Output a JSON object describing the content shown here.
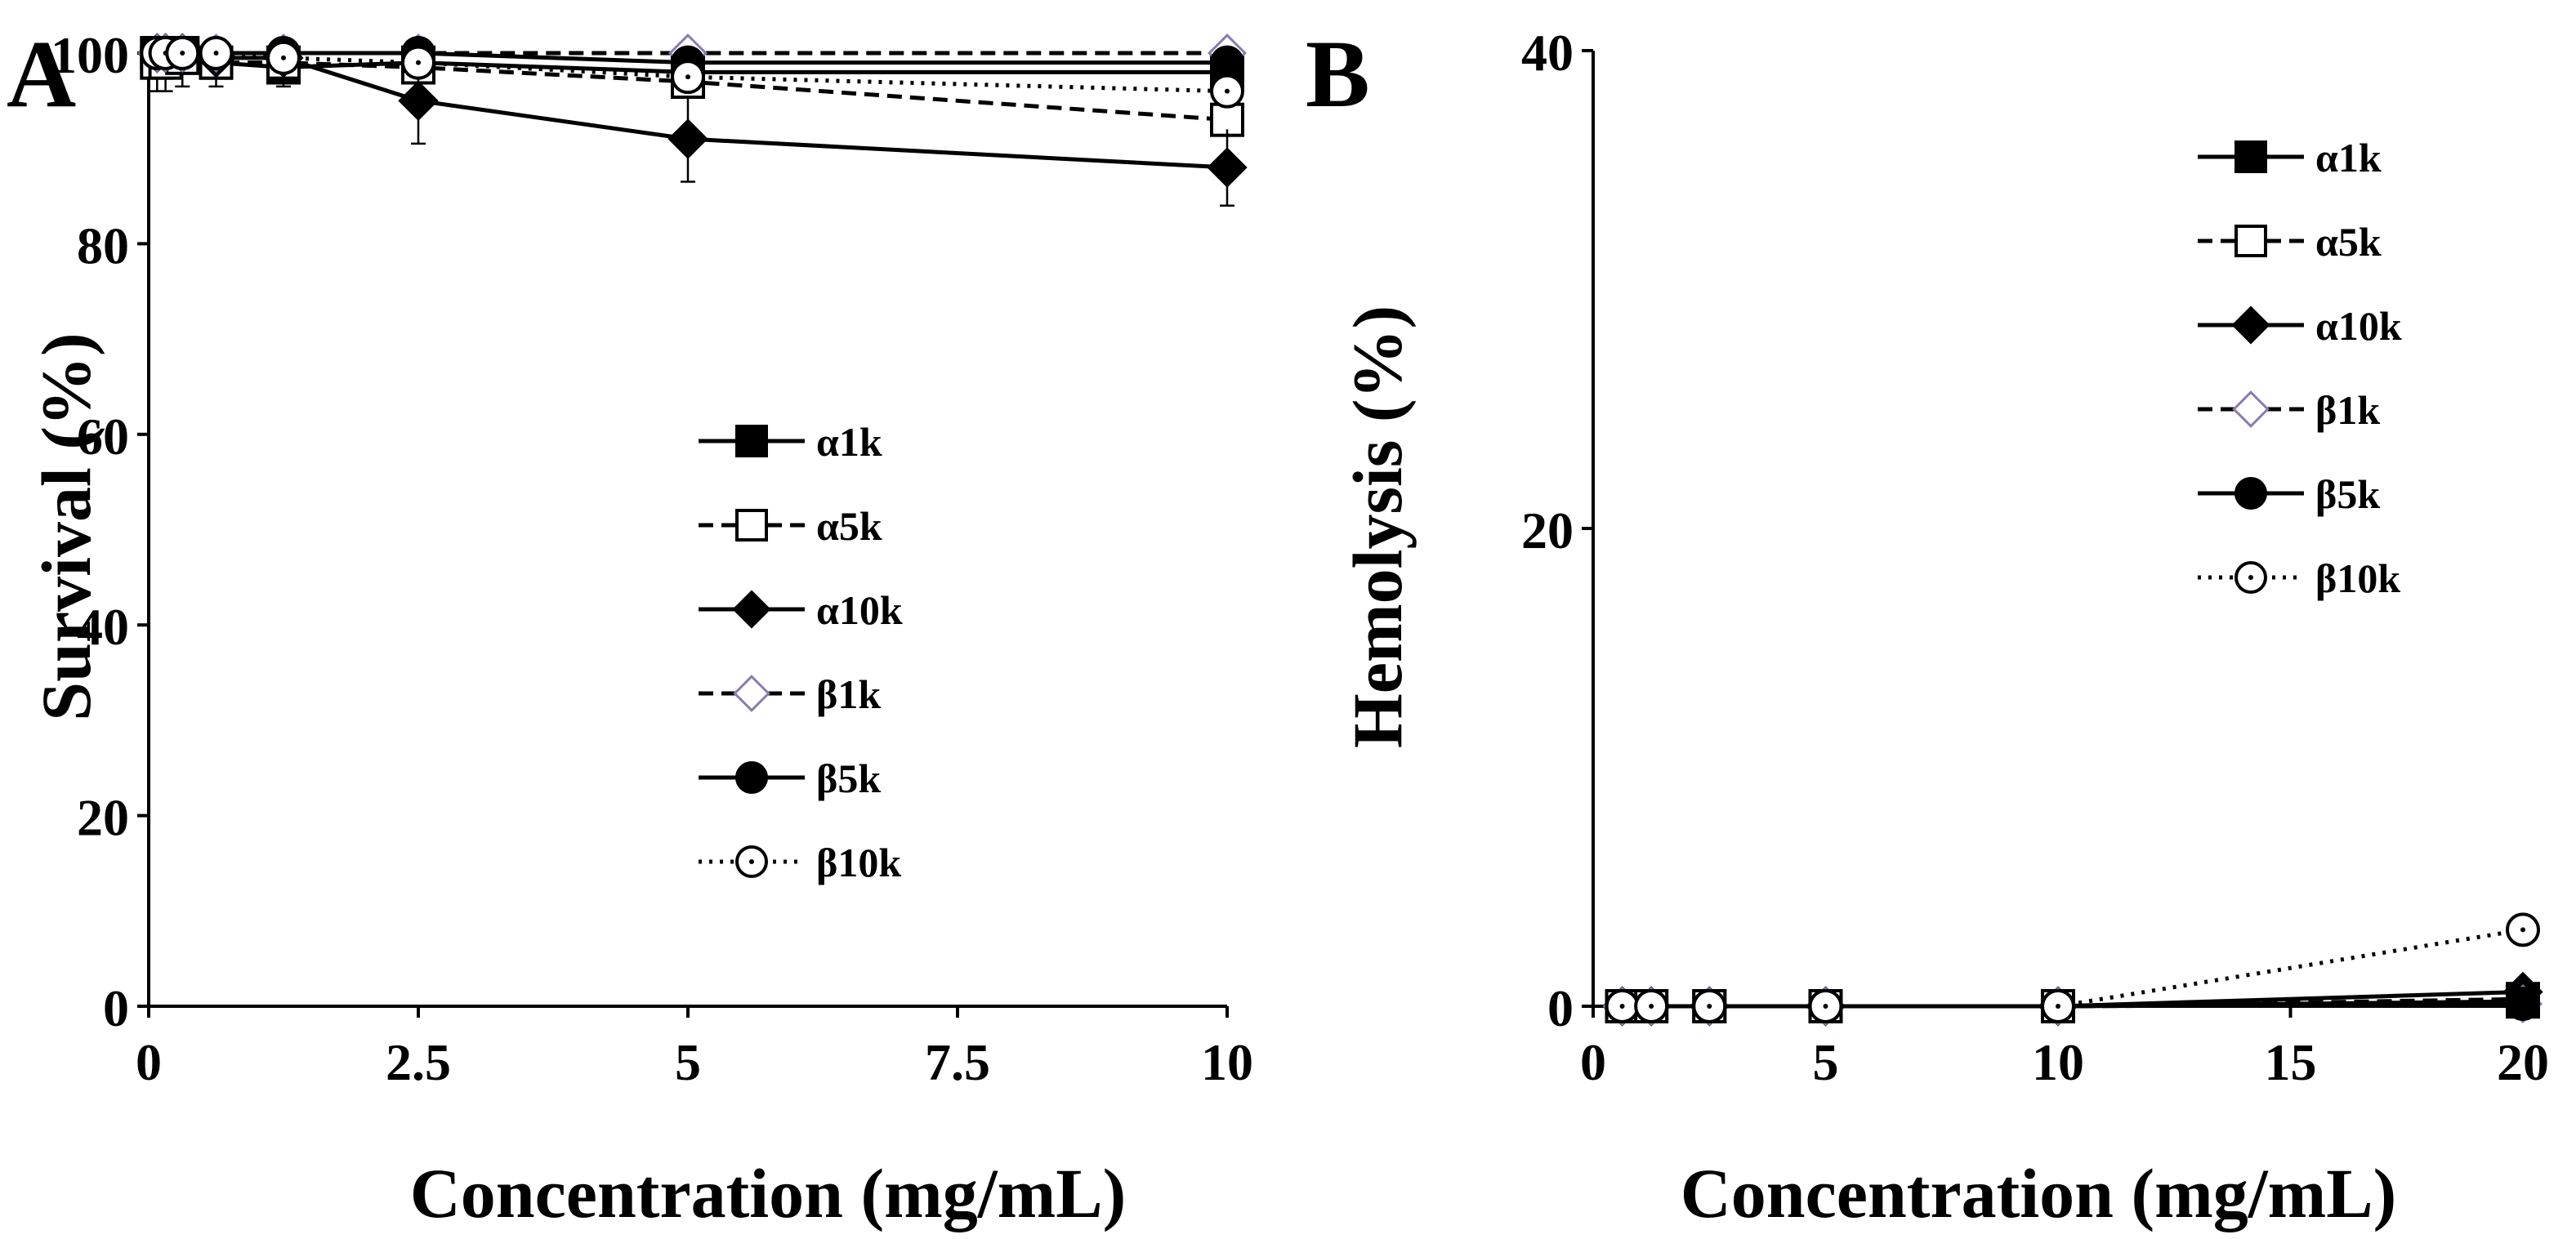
{
  "chart_data": [
    {
      "panel": "A",
      "type": "line",
      "xlabel": "Concentration (mg/mL)",
      "ylabel": "Survival (%)",
      "xlim": [
        0,
        10
      ],
      "ylim": [
        0,
        100
      ],
      "x_ticks": [
        0,
        2.5,
        5,
        7.5,
        10
      ],
      "x_tick_labels": [
        "0",
        "2.5",
        "5",
        "7.5",
        "10"
      ],
      "y_ticks": [
        0,
        20,
        40,
        60,
        80,
        100
      ],
      "y_tick_labels": [
        "0",
        "20",
        "40",
        "60",
        "80",
        "100"
      ],
      "legend_position": "center",
      "series": [
        {
          "name": "α1k",
          "marker": "filled-square",
          "line": "solid",
          "x": [
            0.078,
            0.156,
            0.3125,
            0.625,
            1.25,
            2.5,
            5,
            10
          ],
          "y": [
            100,
            100,
            100,
            99,
            98.5,
            99,
            98,
            98
          ],
          "err": [
            0,
            0,
            0,
            0,
            0,
            0,
            0,
            0
          ]
        },
        {
          "name": "α5k",
          "marker": "open-square",
          "line": "dashed",
          "x": [
            0.078,
            0.156,
            0.3125,
            0.625,
            1.25,
            2.5,
            5,
            10
          ],
          "y": [
            99,
            99,
            99.5,
            99,
            99,
            98.5,
            97,
            93
          ],
          "err": [
            3,
            3,
            3,
            2.5,
            2.5,
            0,
            0,
            0
          ]
        },
        {
          "name": "α10k",
          "marker": "filled-diamond",
          "line": "solid",
          "x": [
            0.078,
            0.156,
            0.3125,
            0.625,
            1.25,
            2.5,
            5,
            10
          ],
          "y": [
            100,
            100,
            100,
            99.5,
            99.5,
            95,
            91,
            88
          ],
          "err": [
            0,
            0,
            0,
            0,
            0,
            4.5,
            4.5,
            4
          ]
        },
        {
          "name": "β1k",
          "marker": "open-diamond",
          "line": "dashed",
          "x": [
            0.078,
            0.156,
            0.3125,
            0.625,
            1.25,
            2.5,
            5,
            10
          ],
          "y": [
            100,
            100,
            100,
            100,
            100,
            100,
            100,
            100
          ],
          "err": [
            0,
            0,
            0,
            0,
            0,
            0,
            0,
            0
          ]
        },
        {
          "name": "β5k",
          "marker": "filled-circle",
          "line": "solid",
          "x": [
            0.078,
            0.156,
            0.3125,
            0.625,
            1.25,
            2.5,
            5,
            10
          ],
          "y": [
            100,
            100,
            100,
            100,
            100,
            100,
            99,
            99
          ],
          "err": [
            0,
            0,
            0,
            0,
            0,
            0,
            0,
            0
          ]
        },
        {
          "name": "β10k",
          "marker": "open-circle",
          "line": "dotted",
          "x": [
            0.078,
            0.156,
            0.3125,
            0.625,
            1.25,
            2.5,
            5,
            10
          ],
          "y": [
            100,
            100,
            100,
            100,
            99.5,
            99,
            97.5,
            96
          ],
          "err": [
            0,
            0,
            0,
            0,
            0,
            0,
            0,
            0
          ]
        }
      ]
    },
    {
      "panel": "B",
      "type": "line",
      "xlabel": "Concentration (mg/mL)",
      "ylabel": "Hemolysis (%)",
      "xlim": [
        0,
        20
      ],
      "ylim": [
        0,
        40
      ],
      "x_ticks": [
        0,
        5,
        10,
        15,
        20
      ],
      "x_tick_labels": [
        "0",
        "5",
        "10",
        "15",
        "20"
      ],
      "y_ticks": [
        0,
        20,
        40
      ],
      "y_tick_labels": [
        "0",
        "20",
        "40"
      ],
      "legend_position": "top-right",
      "series": [
        {
          "name": "α1k",
          "marker": "filled-square",
          "line": "solid",
          "x": [
            0.625,
            1.25,
            2.5,
            5,
            10,
            20
          ],
          "y": [
            0,
            0,
            0,
            0,
            0,
            0.2
          ]
        },
        {
          "name": "α5k",
          "marker": "open-square",
          "line": "dashed",
          "x": [
            0.625,
            1.25,
            2.5,
            5,
            10,
            20
          ],
          "y": [
            0,
            0,
            0,
            0,
            0,
            0.3
          ]
        },
        {
          "name": "α10k",
          "marker": "filled-diamond",
          "line": "solid",
          "x": [
            0.625,
            1.25,
            2.5,
            5,
            10,
            20
          ],
          "y": [
            0,
            0,
            0,
            0,
            0,
            0.6
          ]
        },
        {
          "name": "β1k",
          "marker": "open-diamond",
          "line": "dashed",
          "x": [
            0.625,
            1.25,
            2.5,
            5,
            10,
            20
          ],
          "y": [
            0,
            0,
            0,
            0,
            0,
            0.1
          ]
        },
        {
          "name": "β5k",
          "marker": "filled-circle",
          "line": "solid",
          "x": [
            0.625,
            1.25,
            2.5,
            5,
            10,
            20
          ],
          "y": [
            0,
            0,
            0,
            0,
            0,
            0.1
          ]
        },
        {
          "name": "β10k",
          "marker": "open-circle",
          "line": "dotted",
          "x": [
            0.625,
            1.25,
            2.5,
            5,
            10,
            20
          ],
          "y": [
            0,
            0,
            0,
            0,
            0,
            3.2
          ]
        }
      ]
    }
  ]
}
